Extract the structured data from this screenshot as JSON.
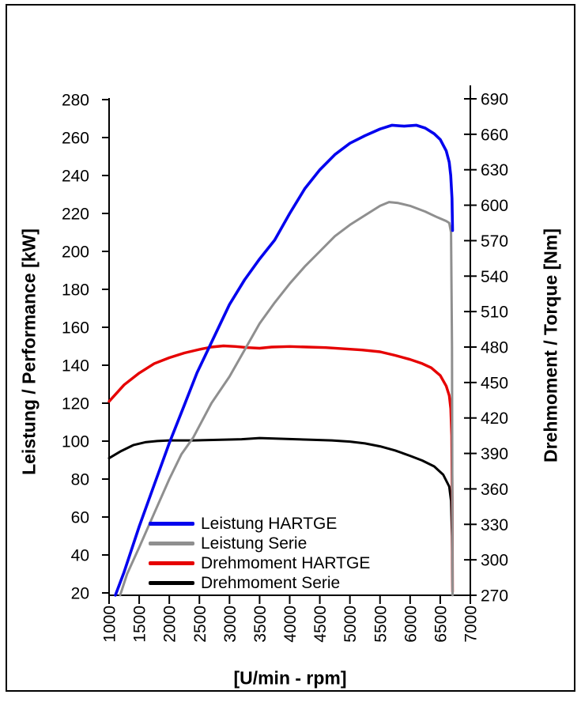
{
  "chart_data": {
    "type": "line",
    "title": "",
    "xlabel": "[U/min - rpm]",
    "ylabel_left": "Leistung / Performance [kW]",
    "ylabel_right": "Drehmoment / Torque [Nm]",
    "x_range": [
      1000,
      7000
    ],
    "y_left_range": [
      20,
      280
    ],
    "y_right_range": [
      270,
      690
    ],
    "x_ticks": [
      1000,
      1500,
      2000,
      2500,
      3000,
      3500,
      4000,
      4500,
      5000,
      5500,
      6000,
      6500,
      7000
    ],
    "y_left_ticks": [
      20,
      40,
      60,
      80,
      100,
      120,
      140,
      160,
      180,
      200,
      220,
      240,
      260,
      280
    ],
    "y_right_ticks": [
      270,
      300,
      330,
      360,
      390,
      420,
      450,
      480,
      510,
      540,
      570,
      600,
      630,
      660,
      690
    ],
    "grid": false,
    "legend_position": "inside-bottom-left",
    "axis_color": "#000000",
    "series": [
      {
        "name": "Drehmoment Serie",
        "color": "#000000",
        "axis": "right",
        "unit": "Nm",
        "points": [
          [
            1000,
            386
          ],
          [
            1200,
            392
          ],
          [
            1400,
            397
          ],
          [
            1600,
            399.5
          ],
          [
            1800,
            400.5
          ],
          [
            2000,
            401
          ],
          [
            2400,
            401
          ],
          [
            2800,
            401.5
          ],
          [
            3200,
            402
          ],
          [
            3500,
            403
          ],
          [
            3800,
            402.5
          ],
          [
            4100,
            402
          ],
          [
            4400,
            401.5
          ],
          [
            4700,
            401
          ],
          [
            5000,
            400
          ],
          [
            5250,
            398.5
          ],
          [
            5500,
            396
          ],
          [
            5750,
            392.5
          ],
          [
            6000,
            388
          ],
          [
            6200,
            384
          ],
          [
            6400,
            379
          ],
          [
            6550,
            372
          ],
          [
            6650,
            362
          ],
          [
            6680,
            350
          ],
          [
            6695,
            320
          ],
          [
            6705,
            273
          ]
        ]
      },
      {
        "name": "Drehmoment HARTGE",
        "color": "#e60000",
        "axis": "right",
        "unit": "Nm",
        "points": [
          [
            1000,
            434
          ],
          [
            1250,
            448
          ],
          [
            1500,
            458
          ],
          [
            1750,
            466
          ],
          [
            2000,
            471
          ],
          [
            2250,
            475
          ],
          [
            2500,
            478
          ],
          [
            2700,
            480
          ],
          [
            2900,
            481
          ],
          [
            3100,
            480.5
          ],
          [
            3300,
            479.5
          ],
          [
            3500,
            479
          ],
          [
            3700,
            480
          ],
          [
            4000,
            480.5
          ],
          [
            4300,
            480
          ],
          [
            4600,
            479.5
          ],
          [
            4900,
            478.5
          ],
          [
            5200,
            477.5
          ],
          [
            5500,
            476
          ],
          [
            5750,
            473
          ],
          [
            6000,
            469.5
          ],
          [
            6200,
            466
          ],
          [
            6350,
            462.5
          ],
          [
            6500,
            456
          ],
          [
            6600,
            447
          ],
          [
            6650,
            439
          ],
          [
            6675,
            428
          ],
          [
            6690,
            405
          ],
          [
            6700,
            350
          ],
          [
            6705,
            273
          ]
        ]
      },
      {
        "name": "Leistung Serie",
        "color": "#8f8f8f",
        "axis": "left",
        "unit": "kW",
        "points": [
          [
            1184,
            18.8
          ],
          [
            1300,
            30
          ],
          [
            1500,
            44
          ],
          [
            1750,
            62
          ],
          [
            2000,
            80
          ],
          [
            2200,
            93
          ],
          [
            2400,
            102
          ],
          [
            2700,
            120
          ],
          [
            3000,
            134
          ],
          [
            3250,
            148
          ],
          [
            3500,
            162
          ],
          [
            3750,
            173
          ],
          [
            4000,
            183
          ],
          [
            4250,
            192
          ],
          [
            4500,
            200
          ],
          [
            4750,
            208
          ],
          [
            5000,
            214
          ],
          [
            5250,
            219
          ],
          [
            5500,
            224
          ],
          [
            5650,
            226
          ],
          [
            5800,
            225.5
          ],
          [
            6000,
            224
          ],
          [
            6250,
            221
          ],
          [
            6450,
            218
          ],
          [
            6600,
            216
          ],
          [
            6650,
            215
          ],
          [
            6680,
            210
          ],
          [
            6695,
            150
          ],
          [
            6705,
            18.8
          ]
        ]
      },
      {
        "name": "Leistung HARTGE",
        "color": "#0202ee",
        "axis": "left",
        "unit": "kW",
        "points": [
          [
            1105,
            18.8
          ],
          [
            1250,
            31
          ],
          [
            1500,
            55
          ],
          [
            1750,
            77
          ],
          [
            2000,
            99
          ],
          [
            2250,
            119
          ],
          [
            2460,
            136
          ],
          [
            2700,
            152
          ],
          [
            3000,
            172
          ],
          [
            3250,
            185
          ],
          [
            3500,
            196
          ],
          [
            3750,
            206
          ],
          [
            4000,
            220
          ],
          [
            4250,
            233
          ],
          [
            4500,
            243
          ],
          [
            4750,
            251
          ],
          [
            5000,
            257
          ],
          [
            5250,
            261
          ],
          [
            5500,
            264.5
          ],
          [
            5700,
            266.5
          ],
          [
            5900,
            266
          ],
          [
            6100,
            266.5
          ],
          [
            6250,
            265
          ],
          [
            6400,
            262
          ],
          [
            6500,
            259
          ],
          [
            6600,
            253
          ],
          [
            6650,
            247
          ],
          [
            6675,
            240
          ],
          [
            6695,
            228
          ],
          [
            6705,
            211
          ]
        ]
      }
    ],
    "legend_order": [
      "Leistung HARTGE",
      "Leistung Serie",
      "Drehmoment HARTGE",
      "Drehmoment Serie"
    ]
  }
}
